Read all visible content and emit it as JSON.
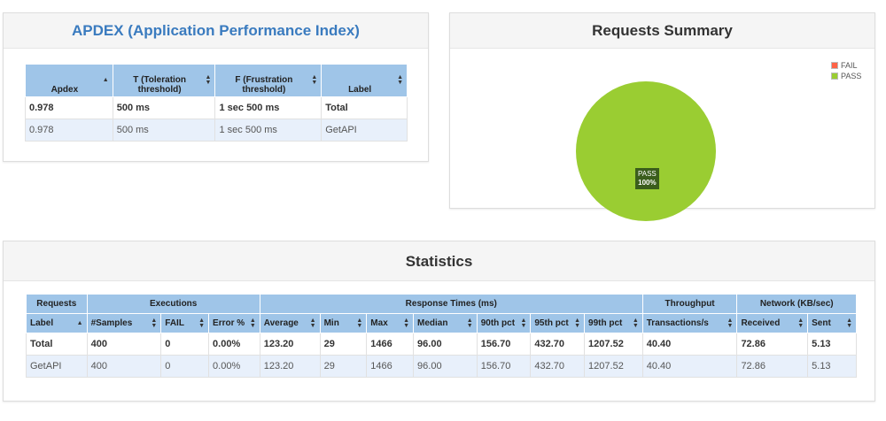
{
  "apdex": {
    "title": "APDEX (Application Performance Index)",
    "headers": [
      "Apdex",
      "T (Toleration threshold)",
      "F (Frustration threshold)",
      "Label"
    ],
    "rows": [
      {
        "apdex": "0.978",
        "t": "500 ms",
        "f": "1 sec 500 ms",
        "label": "Total"
      },
      {
        "apdex": "0.978",
        "t": "500 ms",
        "f": "1 sec 500 ms",
        "label": "GetAPI"
      }
    ]
  },
  "summary": {
    "title": "Requests Summary",
    "legend": [
      {
        "label": "FAIL",
        "color": "#ff6347"
      },
      {
        "label": "PASS",
        "color": "#9acd32"
      }
    ],
    "pie_label": "PASS",
    "pie_percent": "100%",
    "chart_data": {
      "type": "pie",
      "categories": [
        "FAIL",
        "PASS"
      ],
      "values": [
        0,
        100
      ]
    }
  },
  "statistics": {
    "title": "Statistics",
    "groups": [
      "Requests",
      "Executions",
      "Response Times (ms)",
      "Throughput",
      "Network (KB/sec)"
    ],
    "columns": [
      "Label",
      "#Samples",
      "FAIL",
      "Error %",
      "Average",
      "Min",
      "Max",
      "Median",
      "90th pct",
      "95th pct",
      "99th pct",
      "Transactions/s",
      "Received",
      "Sent"
    ],
    "rows": [
      [
        "Total",
        "400",
        "0",
        "0.00%",
        "123.20",
        "29",
        "1466",
        "96.00",
        "156.70",
        "432.70",
        "1207.52",
        "40.40",
        "72.86",
        "5.13"
      ],
      [
        "GetAPI",
        "400",
        "0",
        "0.00%",
        "123.20",
        "29",
        "1466",
        "96.00",
        "156.70",
        "432.70",
        "1207.52",
        "40.40",
        "72.86",
        "5.13"
      ]
    ]
  },
  "colors": {
    "header_blue": "#9fc5e8",
    "title_blue": "#3a7bbf",
    "pass_green": "#9acd32",
    "fail_red": "#ff6347"
  }
}
